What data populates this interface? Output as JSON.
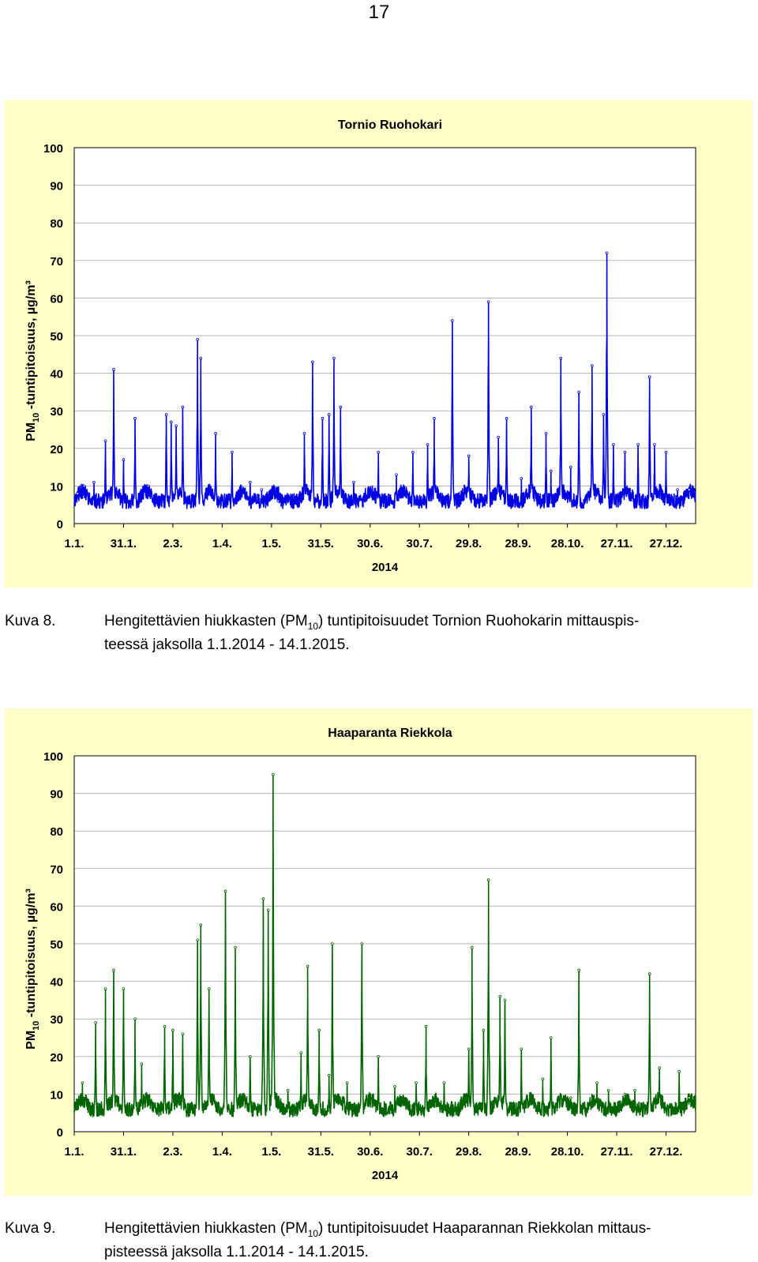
{
  "page_number": "17",
  "chart_data": [
    {
      "type": "line",
      "title": "Tornio Ruohokari",
      "ylabel_prefix": "PM",
      "ylabel_sub": "10",
      "ylabel_suffix": " -tuntipitoisuus, µg/m³",
      "xlabel": "2014",
      "ylim": [
        0,
        100
      ],
      "yticks": [
        0,
        10,
        20,
        30,
        40,
        50,
        60,
        70,
        80,
        90,
        100
      ],
      "xlim_days": [
        0,
        378
      ],
      "x_tick_labels": [
        "1.1.",
        "31.1.",
        "2.3.",
        "1.4.",
        "1.5.",
        "31.5.",
        "30.6.",
        "30.7.",
        "29.8.",
        "28.9.",
        "28.10.",
        "27.11.",
        "27.12."
      ],
      "x_tick_days": [
        0,
        30,
        60,
        90,
        120,
        150,
        180,
        210,
        240,
        270,
        300,
        330,
        360
      ],
      "color": "#0000e6",
      "grid": true,
      "baseline": 4,
      "noise": 4,
      "seed": 11,
      "peaks": [
        {
          "day": 2,
          "value": 8
        },
        {
          "day": 6,
          "value": 10
        },
        {
          "day": 12,
          "value": 11
        },
        {
          "day": 19,
          "value": 22
        },
        {
          "day": 24,
          "value": 41
        },
        {
          "day": 30,
          "value": 17
        },
        {
          "day": 37,
          "value": 28
        },
        {
          "day": 45,
          "value": 10
        },
        {
          "day": 56,
          "value": 29
        },
        {
          "day": 59,
          "value": 27
        },
        {
          "day": 62,
          "value": 26
        },
        {
          "day": 66,
          "value": 31
        },
        {
          "day": 75,
          "value": 49
        },
        {
          "day": 77,
          "value": 44
        },
        {
          "day": 86,
          "value": 24
        },
        {
          "day": 96,
          "value": 19
        },
        {
          "day": 107,
          "value": 11
        },
        {
          "day": 114,
          "value": 9
        },
        {
          "day": 124,
          "value": 6
        },
        {
          "day": 140,
          "value": 24
        },
        {
          "day": 145,
          "value": 43
        },
        {
          "day": 151,
          "value": 28
        },
        {
          "day": 155,
          "value": 29
        },
        {
          "day": 158,
          "value": 44
        },
        {
          "day": 162,
          "value": 31
        },
        {
          "day": 170,
          "value": 11
        },
        {
          "day": 185,
          "value": 19
        },
        {
          "day": 196,
          "value": 13
        },
        {
          "day": 206,
          "value": 19
        },
        {
          "day": 215,
          "value": 21
        },
        {
          "day": 219,
          "value": 28
        },
        {
          "day": 230,
          "value": 54
        },
        {
          "day": 240,
          "value": 18
        },
        {
          "day": 252,
          "value": 59
        },
        {
          "day": 258,
          "value": 23
        },
        {
          "day": 263,
          "value": 28
        },
        {
          "day": 272,
          "value": 12
        },
        {
          "day": 278,
          "value": 31
        },
        {
          "day": 287,
          "value": 24
        },
        {
          "day": 290,
          "value": 14
        },
        {
          "day": 296,
          "value": 44
        },
        {
          "day": 302,
          "value": 15
        },
        {
          "day": 307,
          "value": 35
        },
        {
          "day": 315,
          "value": 42
        },
        {
          "day": 322,
          "value": 29
        },
        {
          "day": 324,
          "value": 72
        },
        {
          "day": 328,
          "value": 21
        },
        {
          "day": 335,
          "value": 19
        },
        {
          "day": 343,
          "value": 21
        },
        {
          "day": 350,
          "value": 39
        },
        {
          "day": 353,
          "value": 21
        },
        {
          "day": 360,
          "value": 19
        },
        {
          "day": 367,
          "value": 9
        },
        {
          "day": 374,
          "value": 9
        }
      ]
    },
    {
      "type": "line",
      "title": "Haaparanta Riekkola",
      "ylabel_prefix": "PM",
      "ylabel_sub": "10",
      "ylabel_suffix": " -tuntipitoisuus, µg/m³",
      "xlabel": "2014",
      "ylim": [
        0,
        100
      ],
      "yticks": [
        0,
        10,
        20,
        30,
        40,
        50,
        60,
        70,
        80,
        90,
        100
      ],
      "xlim_days": [
        0,
        378
      ],
      "x_tick_labels": [
        "1.1.",
        "31.1.",
        "2.3.",
        "1.4.",
        "1.5.",
        "31.5.",
        "30.6.",
        "30.7.",
        "29.8.",
        "28.9.",
        "28.10.",
        "27.11.",
        "27.12."
      ],
      "x_tick_days": [
        0,
        30,
        60,
        90,
        120,
        150,
        180,
        210,
        240,
        270,
        300,
        330,
        360
      ],
      "color": "#006400",
      "grid": true,
      "baseline": 4,
      "noise": 4,
      "seed": 23,
      "peaks": [
        {
          "day": 5,
          "value": 13
        },
        {
          "day": 13,
          "value": 29
        },
        {
          "day": 19,
          "value": 38
        },
        {
          "day": 24,
          "value": 43
        },
        {
          "day": 30,
          "value": 38
        },
        {
          "day": 37,
          "value": 30
        },
        {
          "day": 41,
          "value": 18
        },
        {
          "day": 55,
          "value": 28
        },
        {
          "day": 60,
          "value": 27
        },
        {
          "day": 66,
          "value": 26
        },
        {
          "day": 75,
          "value": 51
        },
        {
          "day": 77,
          "value": 55
        },
        {
          "day": 82,
          "value": 38
        },
        {
          "day": 92,
          "value": 64
        },
        {
          "day": 98,
          "value": 49
        },
        {
          "day": 107,
          "value": 20
        },
        {
          "day": 115,
          "value": 62
        },
        {
          "day": 118,
          "value": 59
        },
        {
          "day": 121,
          "value": 95
        },
        {
          "day": 130,
          "value": 11
        },
        {
          "day": 138,
          "value": 21
        },
        {
          "day": 142,
          "value": 44
        },
        {
          "day": 149,
          "value": 27
        },
        {
          "day": 155,
          "value": 15
        },
        {
          "day": 157,
          "value": 50
        },
        {
          "day": 166,
          "value": 13
        },
        {
          "day": 175,
          "value": 50
        },
        {
          "day": 185,
          "value": 20
        },
        {
          "day": 195,
          "value": 12
        },
        {
          "day": 208,
          "value": 13
        },
        {
          "day": 214,
          "value": 28
        },
        {
          "day": 225,
          "value": 13
        },
        {
          "day": 240,
          "value": 22
        },
        {
          "day": 242,
          "value": 49
        },
        {
          "day": 249,
          "value": 27
        },
        {
          "day": 252,
          "value": 67
        },
        {
          "day": 259,
          "value": 36
        },
        {
          "day": 262,
          "value": 35
        },
        {
          "day": 272,
          "value": 22
        },
        {
          "day": 285,
          "value": 14
        },
        {
          "day": 290,
          "value": 25
        },
        {
          "day": 302,
          "value": 9
        },
        {
          "day": 307,
          "value": 43
        },
        {
          "day": 318,
          "value": 13
        },
        {
          "day": 325,
          "value": 11
        },
        {
          "day": 335,
          "value": 10
        },
        {
          "day": 341,
          "value": 11
        },
        {
          "day": 350,
          "value": 42
        },
        {
          "day": 356,
          "value": 17
        },
        {
          "day": 368,
          "value": 16
        },
        {
          "day": 374,
          "value": 9
        }
      ]
    }
  ],
  "captions": [
    {
      "number": "Kuva 8.",
      "line1_before": "Hengitettävien hiukkasten (PM",
      "line1_sub": "10",
      "line1_after": ") tuntipitoisuudet Tornion Ruohokarin mittauspis-",
      "line2": "teessä jaksolla 1.1.2014 - 14.1.2015."
    },
    {
      "number": "Kuva 9.",
      "line1_before": "Hengitettävien hiukkasten (PM",
      "line1_sub": "10",
      "line1_after": ") tuntipitoisuudet Haaparannan Riekkolan mittaus-",
      "line2": "pisteessä jaksolla 1.1.2014 - 14.1.2015."
    }
  ]
}
